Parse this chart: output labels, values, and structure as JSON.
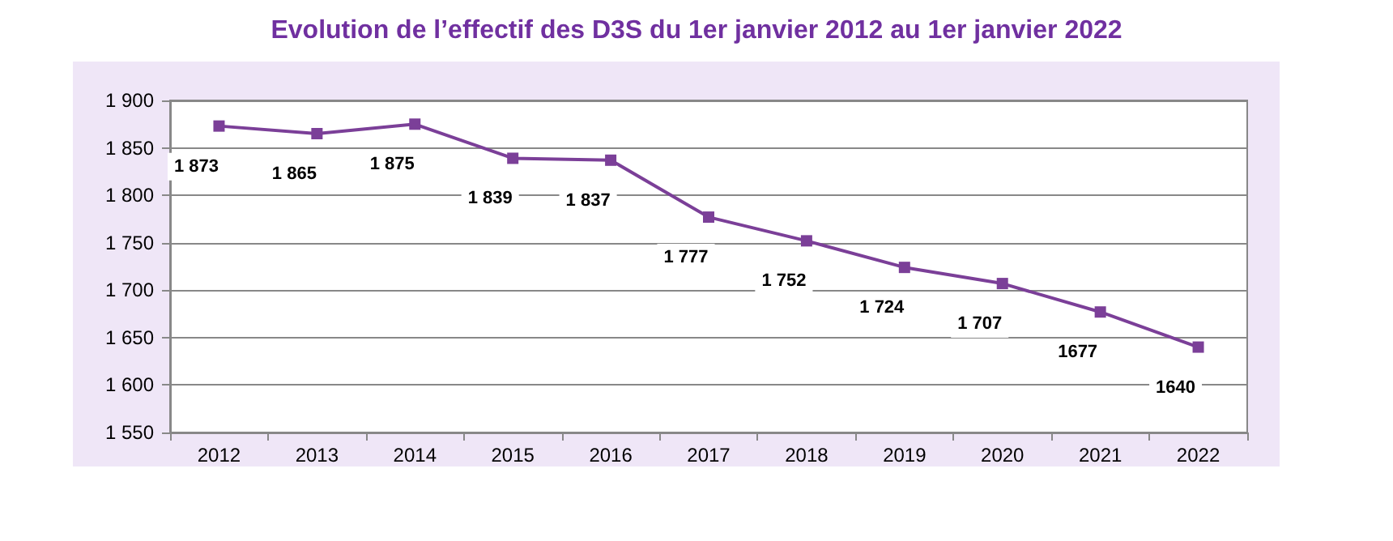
{
  "chart_data": {
    "type": "line",
    "title": "Evolution de l’effectif des D3S du 1er janvier 2012 au 1er janvier 2022",
    "categories": [
      "2012",
      "2013",
      "2014",
      "2015",
      "2016",
      "2017",
      "2018",
      "2019",
      "2020",
      "2021",
      "2022"
    ],
    "series": [
      {
        "color": "#7b3f98",
        "values": [
          1873,
          1865,
          1875,
          1839,
          1837,
          1777,
          1752,
          1724,
          1707,
          1677,
          1640
        ],
        "value_labels": [
          "1 873",
          "1 865",
          "1 875",
          "1 839",
          "1 837",
          "1 777",
          "1 752",
          "1 724",
          "1 707",
          "1677",
          "1640"
        ]
      }
    ],
    "ylim": [
      1550,
      1900
    ],
    "yticks": [
      {
        "value": 1550,
        "label": "1 550"
      },
      {
        "value": 1600,
        "label": "1 600"
      },
      {
        "value": 1650,
        "label": "1 650"
      },
      {
        "value": 1700,
        "label": "1 700"
      },
      {
        "value": 1750,
        "label": "1 750"
      },
      {
        "value": 1800,
        "label": "1 800"
      },
      {
        "value": 1850,
        "label": "1 850"
      },
      {
        "value": 1900,
        "label": "1 900"
      }
    ],
    "grid": "y",
    "marker": "square",
    "line_style": "solid"
  }
}
